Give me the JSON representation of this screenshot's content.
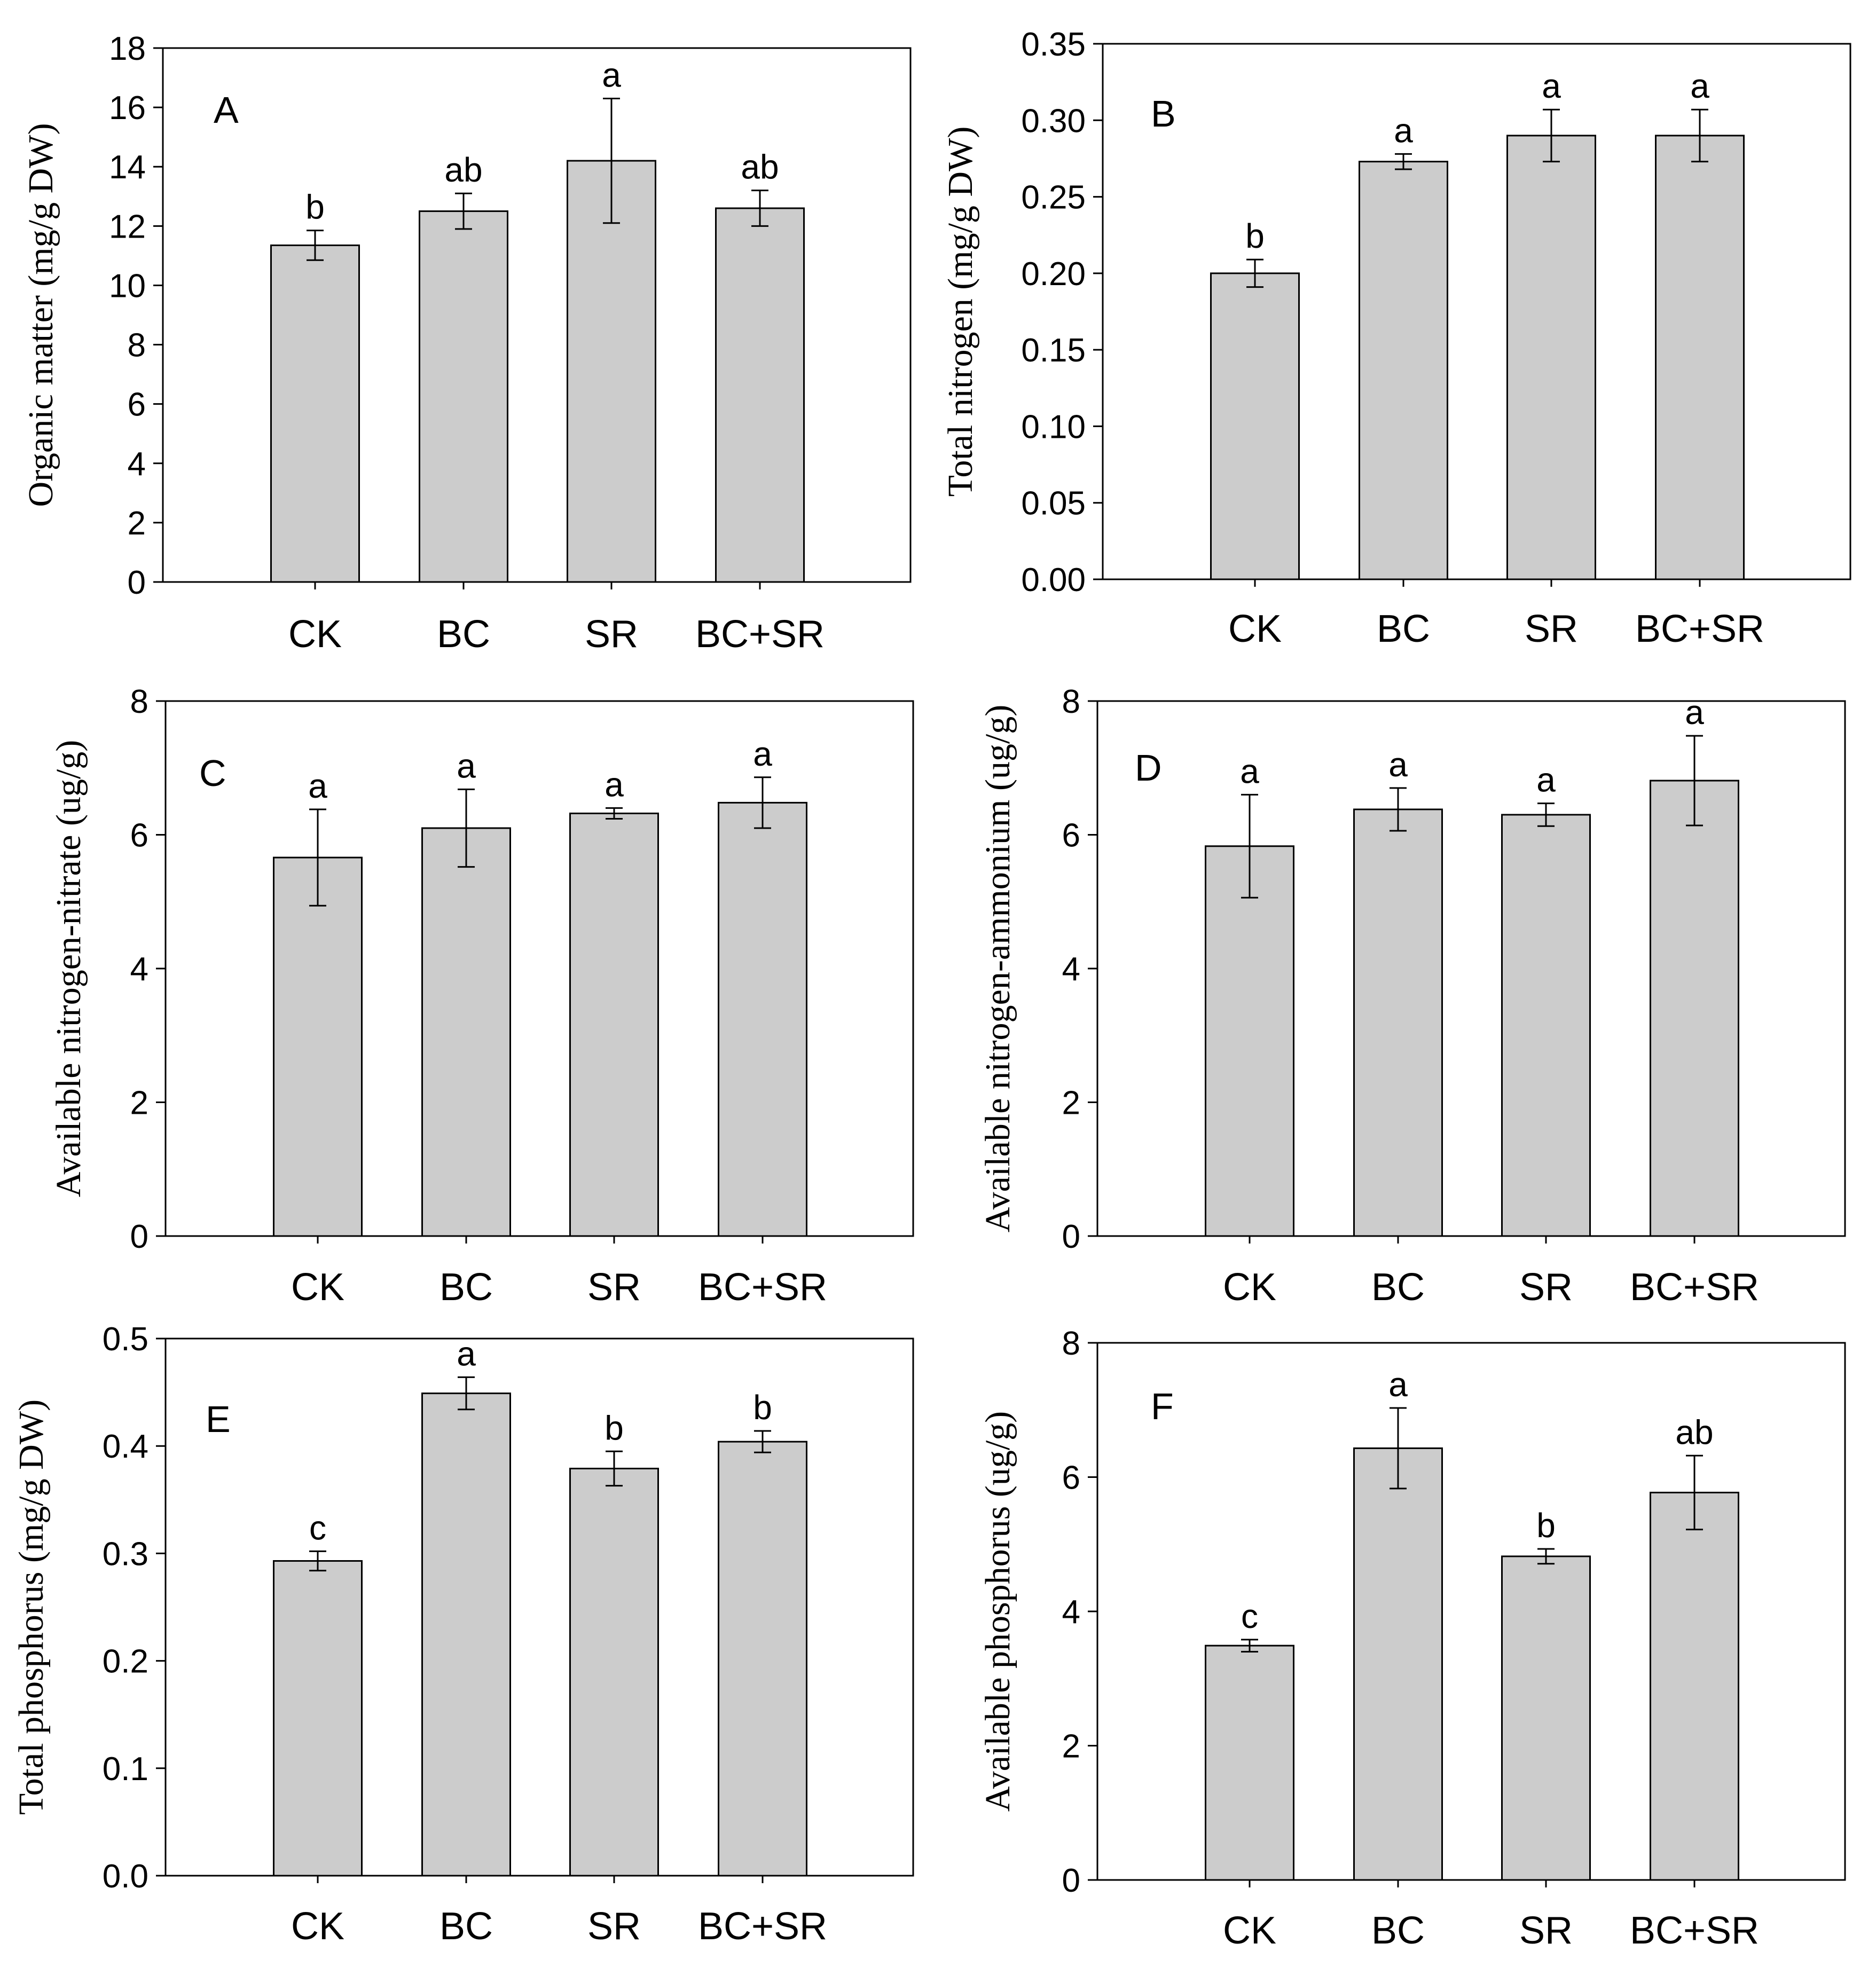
{
  "figure": {
    "description_free": true
  },
  "chart_data": [
    {
      "type": "bar",
      "panel": "A",
      "categories": [
        "CK",
        "BC",
        "SR",
        "BC+SR"
      ],
      "values": [
        11.35,
        12.5,
        14.2,
        12.6
      ],
      "errors": [
        0.5,
        0.6,
        2.1,
        0.6
      ],
      "letters": [
        "b",
        "ab",
        "a",
        "ab"
      ],
      "ylabel": "Organic matter (mg/g DW)",
      "ylim": [
        0,
        18
      ],
      "yticks": [
        "0",
        "2",
        "4",
        "6",
        "8",
        "10",
        "12",
        "14",
        "16",
        "18"
      ],
      "color": "#cccccc"
    },
    {
      "type": "bar",
      "panel": "B",
      "categories": [
        "CK",
        "BC",
        "SR",
        "BC+SR"
      ],
      "values": [
        0.2,
        0.273,
        0.29,
        0.29
      ],
      "errors": [
        0.009,
        0.005,
        0.017,
        0.017
      ],
      "letters": [
        "b",
        "a",
        "a",
        "a"
      ],
      "ylabel": "Total nitrogen (mg/g DW)",
      "ylim": [
        0,
        0.35
      ],
      "yticks": [
        "0.00",
        "0.05",
        "0.10",
        "0.15",
        "0.20",
        "0.25",
        "0.30",
        "0.35"
      ],
      "color": "#cccccc"
    },
    {
      "type": "bar",
      "panel": "C",
      "categories": [
        "CK",
        "BC",
        "SR",
        "BC+SR"
      ],
      "values": [
        5.66,
        6.1,
        6.32,
        6.48
      ],
      "errors": [
        0.72,
        0.58,
        0.08,
        0.38
      ],
      "letters": [
        "a",
        "a",
        "a",
        "a"
      ],
      "ylabel": "Available nitrogen-nitrate (ug/g)",
      "ylim": [
        0,
        8
      ],
      "yticks": [
        "0",
        "2",
        "4",
        "6",
        "8"
      ],
      "color": "#cccccc"
    },
    {
      "type": "bar",
      "panel": "D",
      "categories": [
        "CK",
        "BC",
        "SR",
        "BC+SR"
      ],
      "values": [
        5.83,
        6.38,
        6.3,
        6.81
      ],
      "errors": [
        0.77,
        0.32,
        0.17,
        0.67
      ],
      "letters": [
        "a",
        "a",
        "a",
        "a"
      ],
      "ylabel": "Available nitrogen-ammonium (ug/g)",
      "ylim": [
        0,
        8
      ],
      "yticks": [
        "0",
        "2",
        "4",
        "6",
        "8"
      ],
      "color": "#cccccc"
    },
    {
      "type": "bar",
      "panel": "E",
      "categories": [
        "CK",
        "BC",
        "SR",
        "BC+SR"
      ],
      "values": [
        0.293,
        0.449,
        0.379,
        0.404
      ],
      "errors": [
        0.009,
        0.015,
        0.016,
        0.01
      ],
      "letters": [
        "c",
        "a",
        "b",
        "b"
      ],
      "ylabel": "Total phosphorus (mg/g DW)",
      "ylim": [
        0,
        0.5
      ],
      "yticks": [
        "0.0",
        "0.1",
        "0.2",
        "0.3",
        "0.4",
        "0.5"
      ],
      "color": "#cccccc"
    },
    {
      "type": "bar",
      "panel": "F",
      "categories": [
        "CK",
        "BC",
        "SR",
        "BC+SR"
      ],
      "values": [
        3.49,
        6.43,
        4.82,
        5.77
      ],
      "errors": [
        0.09,
        0.6,
        0.11,
        0.55
      ],
      "letters": [
        "c",
        "a",
        "b",
        "ab"
      ],
      "ylabel": "Available phosphorus (ug/g)",
      "ylim": [
        0,
        8
      ],
      "yticks": [
        "0",
        "2",
        "4",
        "6",
        "8"
      ],
      "color": "#cccccc"
    }
  ]
}
